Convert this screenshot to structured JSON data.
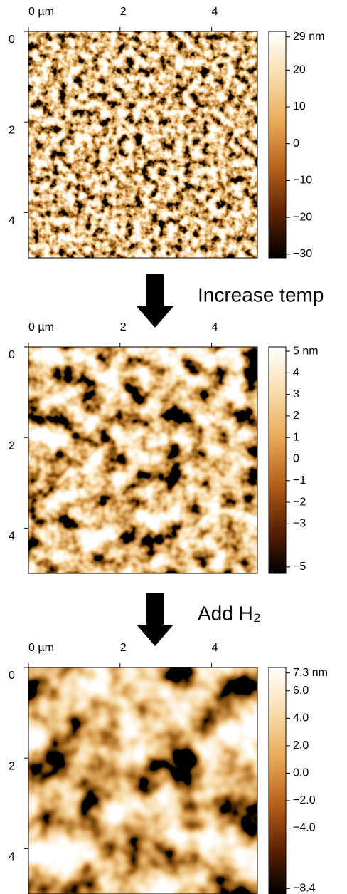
{
  "chart_data": [
    {
      "type": "image",
      "colormap": [
        "#000000",
        "#5e2203",
        "#b8611a",
        "#e9a955",
        "#f8dcaa",
        "#ffffff"
      ],
      "xlim": [
        0,
        5
      ],
      "ylim": [
        0,
        5
      ],
      "xticks": [
        {
          "value": 0,
          "label": "0 µm"
        },
        2,
        4
      ],
      "yticks": [
        0,
        2,
        4
      ],
      "clim": [
        -31,
        30.5
      ],
      "cticks": [
        {
          "value": 29,
          "label": "29 nm"
        },
        20,
        10,
        0,
        {
          "value": -10,
          "label": "−10"
        },
        {
          "value": -20,
          "label": "−20"
        },
        {
          "value": -30,
          "label": "−30"
        }
      ]
    },
    {
      "type": "image",
      "colormap": [
        "#000000",
        "#5e2203",
        "#b8611a",
        "#e9a955",
        "#f8dcaa",
        "#ffffff"
      ],
      "xlim": [
        0,
        5
      ],
      "ylim": [
        0,
        5
      ],
      "xticks": [
        {
          "value": 0,
          "label": "0 µm"
        },
        2,
        4
      ],
      "yticks": [
        0,
        2,
        4
      ],
      "clim": [
        -5.3,
        5.2
      ],
      "cticks": [
        {
          "value": 5,
          "label": "5 nm"
        },
        4,
        3,
        2,
        1,
        0,
        {
          "value": -1,
          "label": "−1"
        },
        {
          "value": -2,
          "label": "−2"
        },
        {
          "value": -3,
          "label": "−3"
        },
        {
          "value": -5,
          "label": "−5"
        }
      ]
    },
    {
      "type": "image",
      "colormap": [
        "#000000",
        "#5e2203",
        "#b8611a",
        "#e9a955",
        "#f8dcaa",
        "#ffffff"
      ],
      "xlim": [
        0,
        5
      ],
      "ylim": [
        0,
        5
      ],
      "xticks": [
        {
          "value": 0,
          "label": "0 µm"
        },
        2,
        4
      ],
      "yticks": [
        0,
        2,
        4
      ],
      "clim": [
        -8.8,
        7.7
      ],
      "cticks": [
        {
          "value": 7.3,
          "label": "7.3 nm"
        },
        {
          "value": 6,
          "label": "6.0"
        },
        {
          "value": 4,
          "label": "4.0"
        },
        {
          "value": 2,
          "label": "2.0"
        },
        {
          "value": 0,
          "label": "0.0"
        },
        {
          "value": -2,
          "label": "−2.0"
        },
        {
          "value": -4,
          "label": "−4.0"
        },
        {
          "value": -8.4,
          "label": "−8.4"
        }
      ]
    }
  ],
  "steps": [
    "Increase temp",
    "Add H₂"
  ]
}
